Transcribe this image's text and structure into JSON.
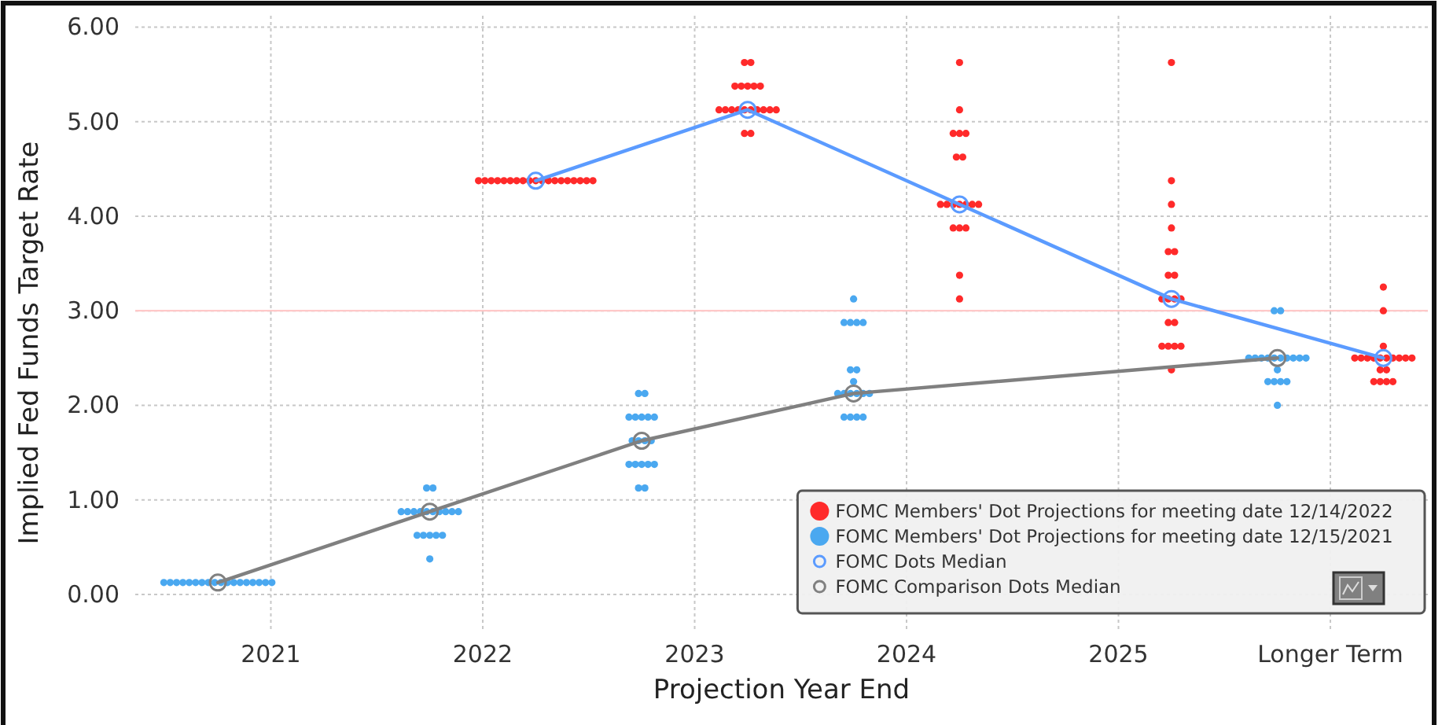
{
  "chart_data": {
    "type": "scatter",
    "xlabel": "Projection Year End",
    "ylabel": "Implied Fed Funds Target Rate",
    "xlim": [
      2020.36,
      2026.46
    ],
    "ylim": [
      -0.4,
      6.12
    ],
    "xticks": [
      2021,
      2022,
      2023,
      2024,
      2025,
      {
        "value": 2026,
        "label": "Longer Term"
      }
    ],
    "yticks": [
      {
        "value": 0,
        "label": "0.00"
      },
      {
        "value": 1,
        "label": "1.00"
      },
      {
        "value": 2,
        "label": "2.00"
      },
      {
        "value": 3,
        "label": "3.00"
      },
      {
        "value": 4,
        "label": "4.00"
      },
      {
        "value": 5,
        "label": "5.00"
      },
      {
        "value": 6,
        "label": "6.00"
      }
    ],
    "grid": true,
    "legend": "bottom right",
    "marker": "circle",
    "ref_lines": [
      {
        "axis": "y",
        "value": 3,
        "color": "#ffc8c8"
      }
    ],
    "series": [
      {
        "name": "FOMC Members' Dot Projections for meeting date 12/14/2022",
        "color": "#ff2a2a",
        "x": [
          2021.98,
          2022.01,
          2022.04,
          2022.07,
          2022.1,
          2022.13,
          2022.16,
          2022.19,
          2022.22,
          2022.25,
          2022.28,
          2022.31,
          2022.34,
          2022.37,
          2022.4,
          2022.43,
          2022.46,
          2022.49,
          2022.52,
          2023.235,
          2023.265,
          2023.115,
          2023.145,
          2023.175,
          2023.205,
          2023.235,
          2023.265,
          2023.295,
          2023.325,
          2023.355,
          2023.385,
          2023.19,
          2023.22,
          2023.25,
          2023.28,
          2023.31,
          2023.235,
          2023.265,
          2024.25,
          2024.25,
          2024.22,
          2024.25,
          2024.28,
          2024.16,
          2024.19,
          2024.22,
          2024.25,
          2024.28,
          2024.31,
          2024.34,
          2024.235,
          2024.265,
          2024.22,
          2024.25,
          2024.28,
          2024.25,
          2024.25,
          2025.25,
          2025.205,
          2025.235,
          2025.265,
          2025.295,
          2025.235,
          2025.265,
          2025.205,
          2025.235,
          2025.265,
          2025.295,
          2025.235,
          2025.265,
          2025.235,
          2025.265,
          2025.25,
          2025.25,
          2025.25,
          2025.25,
          2026.205,
          2026.235,
          2026.265,
          2026.295,
          2026.235,
          2026.265,
          2026.115,
          2026.145,
          2026.175,
          2026.205,
          2026.235,
          2026.265,
          2026.295,
          2026.325,
          2026.355,
          2026.385,
          2026.25,
          2026.25,
          2026.25
        ],
        "values": [
          4.375,
          4.375,
          4.375,
          4.375,
          4.375,
          4.375,
          4.375,
          4.375,
          4.375,
          4.375,
          4.375,
          4.375,
          4.375,
          4.375,
          4.375,
          4.375,
          4.375,
          4.375,
          4.375,
          4.875,
          4.875,
          5.125,
          5.125,
          5.125,
          5.125,
          5.125,
          5.125,
          5.125,
          5.125,
          5.125,
          5.125,
          5.375,
          5.375,
          5.375,
          5.375,
          5.375,
          5.625,
          5.625,
          3.125,
          3.375,
          3.875,
          3.875,
          3.875,
          4.125,
          4.125,
          4.125,
          4.125,
          4.125,
          4.125,
          4.125,
          4.625,
          4.625,
          4.875,
          4.875,
          4.875,
          5.125,
          5.625,
          2.375,
          2.625,
          2.625,
          2.625,
          2.625,
          2.875,
          2.875,
          3.125,
          3.125,
          3.125,
          3.125,
          3.375,
          3.375,
          3.625,
          3.625,
          3.875,
          4.125,
          4.375,
          5.625,
          2.25,
          2.25,
          2.25,
          2.25,
          2.375,
          2.375,
          2.5,
          2.5,
          2.5,
          2.5,
          2.5,
          2.5,
          2.5,
          2.5,
          2.5,
          2.5,
          2.625,
          3.0,
          3.25
        ]
      },
      {
        "name": "FOMC Members' Dot Projections for meeting date 12/15/2021",
        "color": "#4aa8f0",
        "x": [
          2020.495,
          2020.525,
          2020.555,
          2020.585,
          2020.615,
          2020.645,
          2020.675,
          2020.705,
          2020.735,
          2020.765,
          2020.795,
          2020.825,
          2020.855,
          2020.885,
          2020.915,
          2020.945,
          2020.975,
          2021.005,
          2021.75,
          2021.69,
          2021.72,
          2021.75,
          2021.78,
          2021.81,
          2021.615,
          2021.645,
          2021.675,
          2021.705,
          2021.735,
          2021.765,
          2021.795,
          2021.825,
          2021.855,
          2021.885,
          2021.735,
          2021.765,
          2022.735,
          2022.765,
          2022.69,
          2022.72,
          2022.75,
          2022.78,
          2022.81,
          2022.705,
          2022.735,
          2022.765,
          2022.795,
          2022.69,
          2022.72,
          2022.75,
          2022.78,
          2022.81,
          2022.735,
          2022.765,
          2023.705,
          2023.735,
          2023.765,
          2023.795,
          2023.675,
          2023.705,
          2023.735,
          2023.765,
          2023.795,
          2023.825,
          2023.75,
          2023.735,
          2023.765,
          2023.705,
          2023.735,
          2023.765,
          2023.795,
          2023.75,
          2025.75,
          2025.705,
          2025.735,
          2025.765,
          2025.795,
          2025.75,
          2025.615,
          2025.645,
          2025.675,
          2025.705,
          2025.735,
          2025.765,
          2025.795,
          2025.825,
          2025.855,
          2025.885,
          2025.735,
          2025.765
        ],
        "values": [
          0.125,
          0.125,
          0.125,
          0.125,
          0.125,
          0.125,
          0.125,
          0.125,
          0.125,
          0.125,
          0.125,
          0.125,
          0.125,
          0.125,
          0.125,
          0.125,
          0.125,
          0.125,
          0.375,
          0.625,
          0.625,
          0.625,
          0.625,
          0.625,
          0.875,
          0.875,
          0.875,
          0.875,
          0.875,
          0.875,
          0.875,
          0.875,
          0.875,
          0.875,
          1.125,
          1.125,
          1.125,
          1.125,
          1.375,
          1.375,
          1.375,
          1.375,
          1.375,
          1.625,
          1.625,
          1.625,
          1.625,
          1.875,
          1.875,
          1.875,
          1.875,
          1.875,
          2.125,
          2.125,
          1.875,
          1.875,
          1.875,
          1.875,
          2.125,
          2.125,
          2.125,
          2.125,
          2.125,
          2.125,
          2.25,
          2.375,
          2.375,
          2.875,
          2.875,
          2.875,
          2.875,
          3.125,
          2.0,
          2.25,
          2.25,
          2.25,
          2.25,
          2.375,
          2.5,
          2.5,
          2.5,
          2.5,
          2.5,
          2.5,
          2.5,
          2.5,
          2.5,
          2.5,
          3.0,
          3.0
        ]
      },
      {
        "name": "FOMC Dots Median",
        "type": "line",
        "color": "#5b9bff",
        "x": [
          2022.25,
          2023.25,
          2024.25,
          2025.25,
          2026.25
        ],
        "values": [
          4.375,
          5.125,
          4.125,
          3.125,
          2.5
        ]
      },
      {
        "name": "FOMC Comparison Dots Median",
        "type": "line",
        "color": "#808080",
        "x": [
          2020.75,
          2021.75,
          2022.75,
          2023.75,
          2025.75
        ],
        "values": [
          0.125,
          0.875,
          1.625,
          2.125,
          2.5
        ]
      }
    ]
  }
}
